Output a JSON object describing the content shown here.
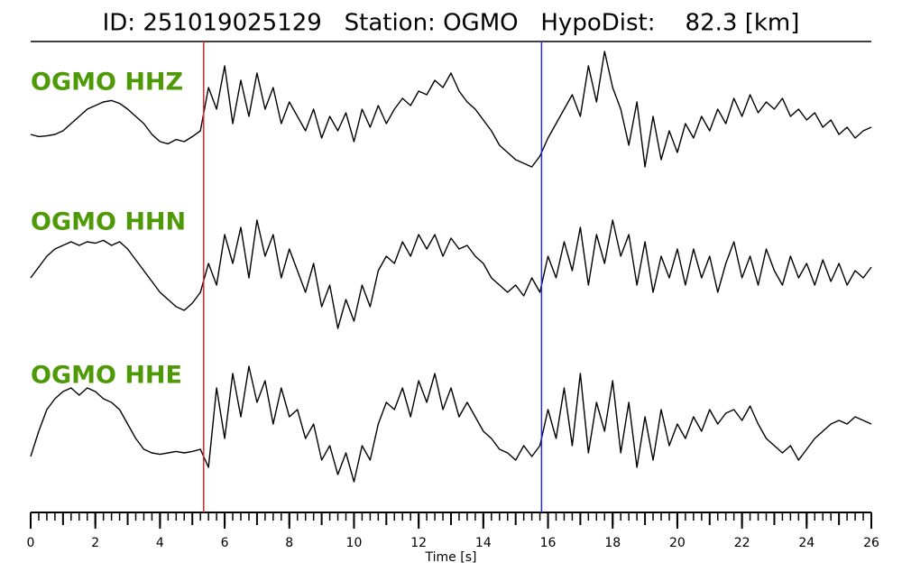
{
  "chart_data": {
    "type": "line",
    "title": "ID: 251019025129   Station: OGMO   HypoDist:    82.3 [km]",
    "xlabel": "Time [s]",
    "xlim": [
      0,
      26
    ],
    "xticks": [
      0,
      2,
      4,
      6,
      8,
      10,
      12,
      14,
      16,
      18,
      20,
      22,
      24,
      26
    ],
    "xminorticks": [
      0,
      0.25,
      0.5,
      0.75,
      1,
      1.25,
      1.5,
      1.75,
      2,
      2.25,
      2.5,
      2.75,
      3,
      3.25,
      3.5,
      3.75,
      4,
      4.25,
      4.5,
      4.75,
      5,
      5.25,
      5.5,
      5.75,
      6,
      6.25,
      6.5,
      6.75,
      7,
      7.25,
      7.5,
      7.75,
      8,
      8.25,
      8.5,
      8.75,
      9,
      9.25,
      9.5,
      9.75,
      10,
      10.25,
      10.5,
      10.75,
      11,
      11.25,
      11.5,
      11.75,
      12,
      12.25,
      12.5,
      12.75,
      13,
      13.25,
      13.5,
      13.75,
      14,
      14.25,
      14.5,
      14.75,
      15,
      15.25,
      15.5,
      15.75,
      16,
      16.25,
      16.5,
      16.75,
      17,
      17.25,
      17.5,
      17.75,
      18,
      18.25,
      18.5,
      18.75,
      19,
      19.25,
      19.5,
      19.75,
      20,
      20.25,
      20.5,
      20.75,
      21,
      21.25,
      21.5,
      21.75,
      22,
      22.25,
      22.5,
      22.75,
      23,
      23.25,
      23.5,
      23.75,
      24,
      24.25,
      24.5,
      24.75,
      25,
      25.25,
      25.5,
      25.75,
      26
    ],
    "x": [
      0,
      0.25,
      0.5,
      0.75,
      1,
      1.25,
      1.5,
      1.75,
      2,
      2.25,
      2.5,
      2.75,
      3,
      3.25,
      3.5,
      3.75,
      4,
      4.25,
      4.5,
      4.75,
      5,
      5.25,
      5.5,
      5.75,
      6,
      6.25,
      6.5,
      6.75,
      7,
      7.25,
      7.5,
      7.75,
      8,
      8.25,
      8.5,
      8.75,
      9,
      9.25,
      9.5,
      9.75,
      10,
      10.25,
      10.5,
      10.75,
      11,
      11.25,
      11.5,
      11.75,
      12,
      12.25,
      12.5,
      12.75,
      13,
      13.25,
      13.5,
      13.75,
      14,
      14.25,
      14.5,
      14.75,
      15,
      15.25,
      15.5,
      15.75,
      16,
      16.25,
      16.5,
      16.75,
      17,
      17.25,
      17.5,
      17.75,
      18,
      18.25,
      18.5,
      18.75,
      19,
      19.25,
      19.5,
      19.75,
      20,
      20.25,
      20.5,
      20.75,
      21,
      21.25,
      21.5,
      21.75,
      22,
      22.25,
      22.5,
      22.75,
      23,
      23.25,
      23.5,
      23.75,
      24,
      24.25,
      24.5,
      24.75,
      25,
      25.25,
      25.5,
      25.75,
      26
    ],
    "label_color": "#4e9a06",
    "picks": [
      {
        "value": 5.35,
        "color": "#e8232a"
      },
      {
        "value": 15.8,
        "color": "#2a2ae8"
      }
    ],
    "series": [
      {
        "name": "OGMO HHZ",
        "color": "#000000",
        "values": [
          -0.05,
          -0.08,
          -0.07,
          -0.05,
          0.0,
          0.1,
          0.2,
          0.3,
          0.35,
          0.4,
          0.42,
          0.38,
          0.3,
          0.2,
          0.1,
          -0.05,
          -0.15,
          -0.18,
          -0.12,
          -0.15,
          -0.08,
          0.0,
          0.6,
          0.3,
          0.9,
          0.1,
          0.7,
          0.2,
          0.8,
          0.3,
          0.6,
          0.1,
          0.4,
          0.2,
          0.0,
          0.3,
          -0.1,
          0.2,
          0.0,
          0.25,
          -0.15,
          0.3,
          0.05,
          0.35,
          0.1,
          0.3,
          0.45,
          0.35,
          0.55,
          0.5,
          0.7,
          0.6,
          0.8,
          0.55,
          0.4,
          0.3,
          0.15,
          0.0,
          -0.2,
          -0.3,
          -0.4,
          -0.45,
          -0.5,
          -0.35,
          -0.1,
          0.1,
          0.3,
          0.5,
          0.2,
          0.9,
          0.4,
          1.1,
          0.6,
          0.3,
          -0.2,
          0.4,
          -0.5,
          0.2,
          -0.4,
          0.0,
          -0.3,
          0.1,
          -0.1,
          0.2,
          0.0,
          0.3,
          0.1,
          0.45,
          0.2,
          0.5,
          0.25,
          0.4,
          0.3,
          0.45,
          0.2,
          0.3,
          0.15,
          0.25,
          0.05,
          0.15,
          -0.05,
          0.05,
          -0.1,
          0.0,
          0.05
        ]
      },
      {
        "name": "OGMO HHN",
        "color": "#000000",
        "values": [
          -0.1,
          0.05,
          0.2,
          0.3,
          0.35,
          0.4,
          0.35,
          0.4,
          0.38,
          0.42,
          0.35,
          0.4,
          0.3,
          0.15,
          0.0,
          -0.15,
          -0.3,
          -0.4,
          -0.5,
          -0.55,
          -0.45,
          -0.3,
          0.1,
          -0.2,
          0.5,
          0.1,
          0.6,
          -0.1,
          0.7,
          0.2,
          0.5,
          -0.1,
          0.3,
          0.0,
          -0.3,
          0.1,
          -0.5,
          -0.2,
          -0.8,
          -0.4,
          -0.7,
          -0.2,
          -0.5,
          0.0,
          0.2,
          0.1,
          0.4,
          0.2,
          0.5,
          0.3,
          0.5,
          0.2,
          0.45,
          0.3,
          0.35,
          0.2,
          0.1,
          -0.1,
          -0.2,
          -0.3,
          -0.2,
          -0.35,
          -0.1,
          -0.3,
          0.2,
          -0.1,
          0.4,
          0.0,
          0.6,
          -0.2,
          0.5,
          0.1,
          0.7,
          0.2,
          0.5,
          -0.2,
          0.4,
          -0.3,
          0.2,
          -0.1,
          0.3,
          -0.2,
          0.3,
          -0.1,
          0.2,
          -0.3,
          0.1,
          0.4,
          -0.1,
          0.2,
          -0.2,
          0.3,
          0.0,
          -0.2,
          0.2,
          -0.1,
          0.1,
          -0.2,
          0.15,
          -0.15,
          0.1,
          -0.2,
          0.0,
          -0.1,
          0.05
        ]
      },
      {
        "name": "OGMO HHE",
        "color": "#000000",
        "values": [
          -0.45,
          -0.1,
          0.2,
          0.35,
          0.45,
          0.5,
          0.4,
          0.5,
          0.45,
          0.35,
          0.3,
          0.2,
          0.0,
          -0.2,
          -0.35,
          -0.4,
          -0.42,
          -0.4,
          -0.38,
          -0.4,
          -0.38,
          -0.35,
          -0.6,
          0.5,
          -0.2,
          0.7,
          0.1,
          0.8,
          0.3,
          0.6,
          0.0,
          0.5,
          0.1,
          0.2,
          -0.2,
          0.0,
          -0.5,
          -0.3,
          -0.7,
          -0.4,
          -0.8,
          -0.3,
          -0.5,
          0.0,
          0.3,
          0.2,
          0.5,
          0.1,
          0.6,
          0.3,
          0.7,
          0.2,
          0.5,
          0.1,
          0.3,
          0.1,
          -0.1,
          -0.2,
          -0.35,
          -0.4,
          -0.5,
          -0.3,
          -0.45,
          -0.3,
          0.2,
          -0.2,
          0.5,
          -0.3,
          0.7,
          -0.4,
          0.3,
          -0.1,
          0.6,
          -0.4,
          0.3,
          -0.6,
          0.1,
          -0.5,
          0.2,
          -0.3,
          0.0,
          -0.2,
          0.1,
          -0.1,
          0.2,
          0.0,
          0.15,
          0.2,
          0.05,
          0.25,
          0.0,
          -0.2,
          -0.3,
          -0.4,
          -0.3,
          -0.5,
          -0.35,
          -0.2,
          -0.1,
          0.0,
          0.05,
          0.0,
          0.1,
          0.05,
          0.0
        ]
      }
    ]
  }
}
